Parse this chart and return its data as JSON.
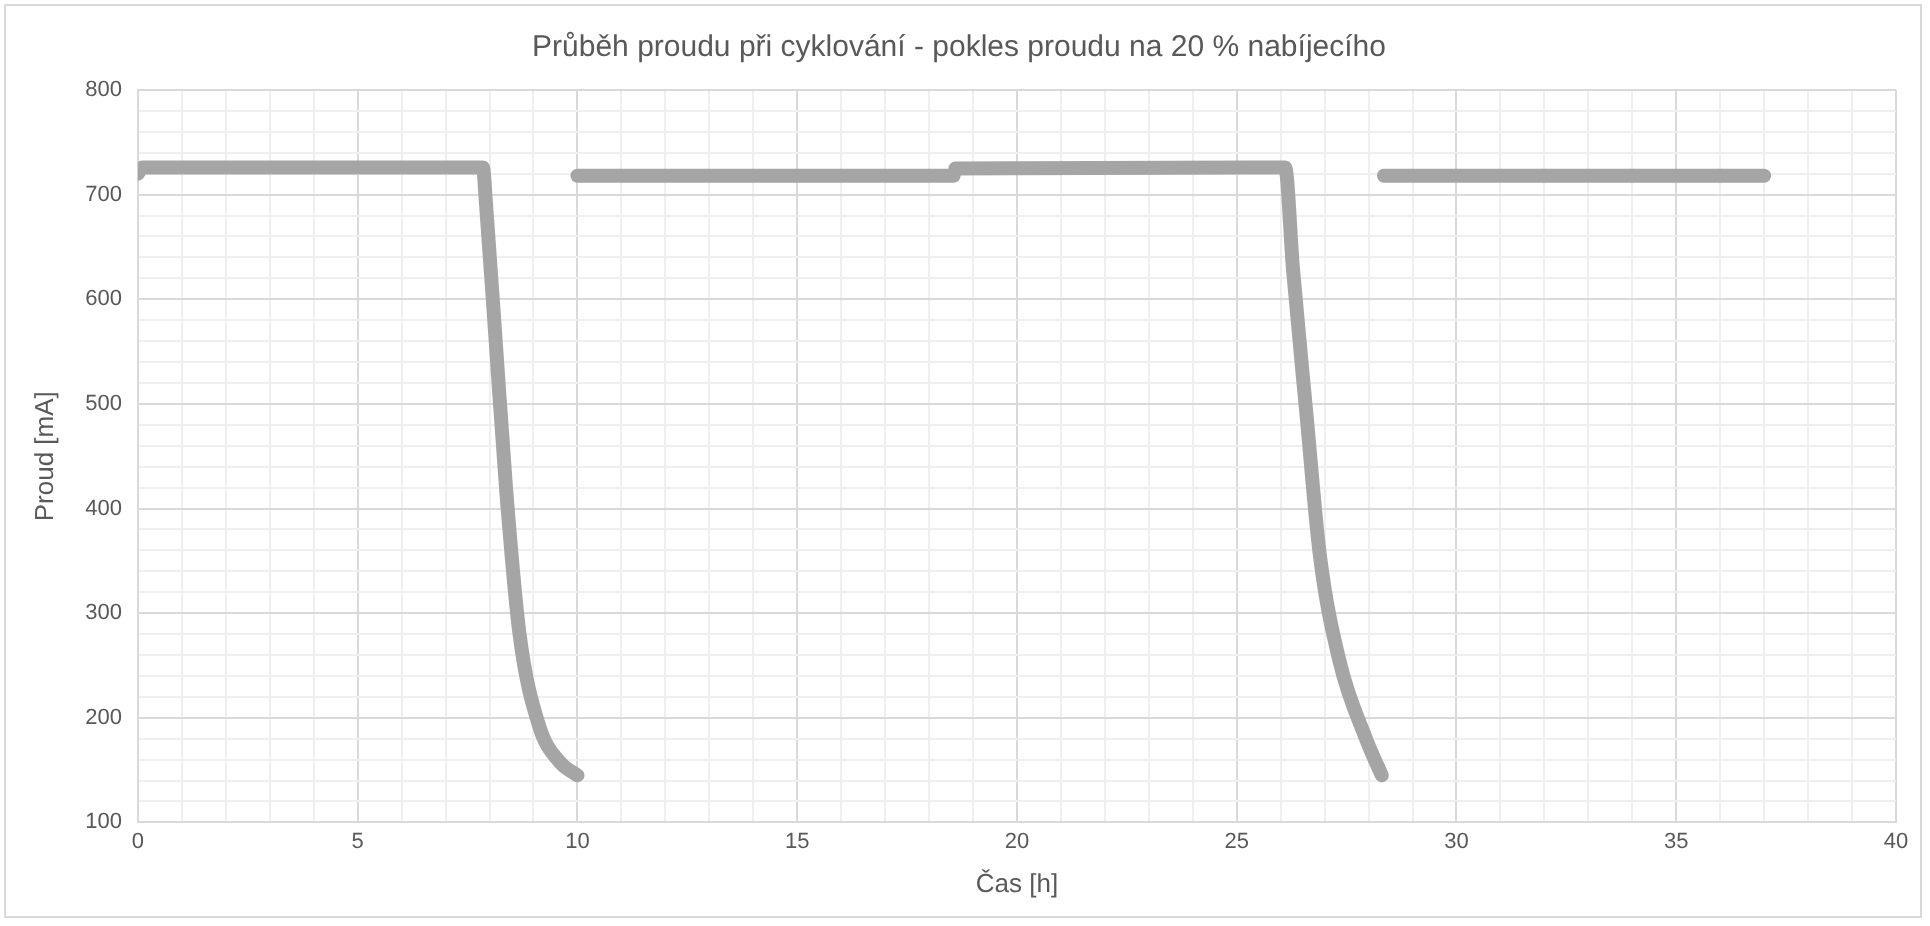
{
  "chart_data": {
    "type": "line",
    "title": "Průběh proudu při cyklování - pokles proudu na 20 % nabíjecího",
    "xlabel": "Čas [h]",
    "ylabel": "Proud [mA]",
    "series": [
      {
        "color": "#a5a5a5",
        "x": [
          0,
          0.1,
          7.85,
          7.92,
          8.15,
          8.38,
          8.68,
          9.13,
          9.59,
          10
        ],
        "values": [
          720,
          726,
          726,
          691,
          554,
          417,
          281,
          192,
          158,
          145
        ]
      },
      {
        "color": "#a5a5a5",
        "x": [
          10,
          18.56
        ],
        "values": [
          718,
          718
        ]
      },
      {
        "color": "#a5a5a5",
        "x": [
          18.6,
          26.1,
          26.28,
          26.58,
          26.89,
          27.34,
          27.95,
          28.3
        ],
        "values": [
          725,
          726,
          629,
          493,
          356,
          254,
          179,
          145
        ]
      },
      {
        "color": "#a5a5a5",
        "x": [
          28.35,
          37
        ],
        "values": [
          718,
          718
        ]
      }
    ],
    "xlim": [
      0,
      40
    ],
    "ylim": [
      100,
      800
    ],
    "xticks": [
      0,
      {
        "value": 1,
        "label": null
      },
      {
        "value": 2,
        "label": null
      },
      {
        "value": 3,
        "label": null
      },
      {
        "value": 4,
        "label": null
      },
      5,
      {
        "value": 6,
        "label": null
      },
      {
        "value": 7,
        "label": null
      },
      {
        "value": 8,
        "label": null
      },
      {
        "value": 9,
        "label": null
      },
      10,
      {
        "value": 11,
        "label": null
      },
      {
        "value": 12,
        "label": null
      },
      {
        "value": 13,
        "label": null
      },
      {
        "value": 14,
        "label": null
      },
      15,
      {
        "value": 16,
        "label": null
      },
      {
        "value": 17,
        "label": null
      },
      {
        "value": 18,
        "label": null
      },
      {
        "value": 19,
        "label": null
      },
      20,
      {
        "value": 21,
        "label": null
      },
      {
        "value": 22,
        "label": null
      },
      {
        "value": 23,
        "label": null
      },
      {
        "value": 24,
        "label": null
      },
      25,
      {
        "value": 26,
        "label": null
      },
      {
        "value": 27,
        "label": null
      },
      {
        "value": 28,
        "label": null
      },
      {
        "value": 29,
        "label": null
      },
      30,
      {
        "value": 31,
        "label": null
      },
      {
        "value": 32,
        "label": null
      },
      {
        "value": 33,
        "label": null
      },
      {
        "value": 34,
        "label": null
      },
      35,
      {
        "value": 36,
        "label": null
      },
      {
        "value": 37,
        "label": null
      },
      {
        "value": 38,
        "label": null
      },
      {
        "value": 39,
        "label": null
      },
      40
    ],
    "yticks": [
      100,
      {
        "value": 120,
        "label": null
      },
      {
        "value": 140,
        "label": null
      },
      {
        "value": 160,
        "label": null
      },
      {
        "value": 180,
        "label": null
      },
      200,
      {
        "value": 220,
        "label": null
      },
      {
        "value": 240,
        "label": null
      },
      {
        "value": 260,
        "label": null
      },
      {
        "value": 280,
        "label": null
      },
      300,
      {
        "value": 320,
        "label": null
      },
      {
        "value": 340,
        "label": null
      },
      {
        "value": 360,
        "label": null
      },
      {
        "value": 380,
        "label": null
      },
      400,
      {
        "value": 420,
        "label": null
      },
      {
        "value": 440,
        "label": null
      },
      {
        "value": 460,
        "label": null
      },
      {
        "value": 480,
        "label": null
      },
      500,
      {
        "value": 520,
        "label": null
      },
      {
        "value": 540,
        "label": null
      },
      {
        "value": 560,
        "label": null
      },
      {
        "value": 580,
        "label": null
      },
      600,
      {
        "value": 620,
        "label": null
      },
      {
        "value": 640,
        "label": null
      },
      {
        "value": 660,
        "label": null
      },
      {
        "value": 680,
        "label": null
      },
      700,
      {
        "value": 720,
        "label": null
      },
      {
        "value": 740,
        "label": null
      },
      {
        "value": 760,
        "label": null
      },
      {
        "value": 780,
        "label": null
      },
      800
    ],
    "grid": true,
    "marker": "none",
    "line_style": "solid"
  }
}
